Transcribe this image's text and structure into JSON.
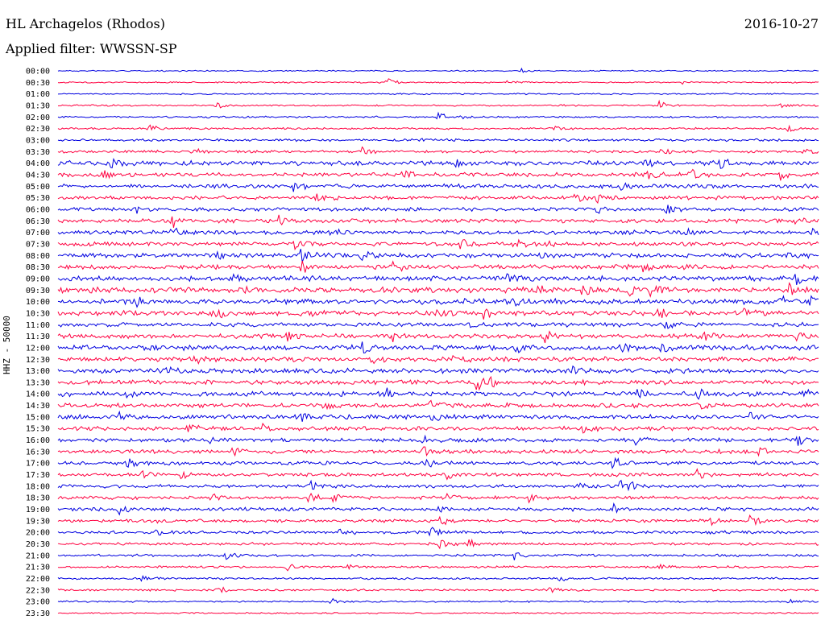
{
  "header": {
    "station": "HL Archagelos (Rhodos)",
    "date": "2016-10-27",
    "filter": "Applied filter: WWSSN-SP"
  },
  "chart_data": {
    "type": "line",
    "ylabel": "HHZ - 50000",
    "row_labels": [
      "00:00",
      "00:30",
      "01:00",
      "01:30",
      "02:00",
      "02:30",
      "03:00",
      "03:30",
      "04:00",
      "04:30",
      "05:00",
      "05:30",
      "06:00",
      "06:30",
      "07:00",
      "07:30",
      "08:00",
      "08:30",
      "09:00",
      "09:30",
      "10:00",
      "10:30",
      "11:00",
      "11:30",
      "12:00",
      "12:30",
      "13:00",
      "13:30",
      "14:00",
      "14:30",
      "15:00",
      "15:30",
      "16:00",
      "16:30",
      "17:00",
      "17:30",
      "18:00",
      "18:30",
      "19:00",
      "19:30",
      "20:00",
      "20:30",
      "21:00",
      "21:30",
      "22:00",
      "22:30",
      "23:00",
      "23:30"
    ],
    "colors": [
      "#0000e0",
      "#ff0040"
    ],
    "noise_levels": [
      0.6,
      0.7,
      0.7,
      0.8,
      0.9,
      1.0,
      1.2,
      1.3,
      2.2,
      2.0,
      2.0,
      1.8,
      1.8,
      1.9,
      2.0,
      2.0,
      2.2,
      2.2,
      2.4,
      2.6,
      2.5,
      2.4,
      2.0,
      2.2,
      2.4,
      2.2,
      2.3,
      2.2,
      2.2,
      2.2,
      2.2,
      2.0,
      1.9,
      1.9,
      1.8,
      1.7,
      1.6,
      1.6,
      1.7,
      1.5,
      1.4,
      1.3,
      1.2,
      1.1,
      1.0,
      1.0,
      0.8,
      0.7
    ],
    "events": [
      [
        [
          0.61,
          3
        ]
      ],
      [
        [
          0.43,
          9
        ],
        [
          0.59,
          2
        ],
        [
          0.82,
          2
        ]
      ],
      [],
      [
        [
          0.21,
          4
        ],
        [
          0.79,
          6
        ],
        [
          0.95,
          3
        ]
      ],
      [
        [
          0.5,
          8
        ],
        [
          0.53,
          4
        ]
      ],
      [
        [
          0.12,
          7
        ],
        [
          0.65,
          6
        ],
        [
          0.96,
          5
        ]
      ],
      [
        [
          0.47,
          4
        ]
      ],
      [
        [
          0.18,
          6
        ],
        [
          0.4,
          7
        ],
        [
          0.79,
          8
        ],
        [
          0.98,
          6
        ]
      ],
      [
        [
          0.07,
          8
        ],
        [
          0.52,
          6
        ],
        [
          0.77,
          10
        ],
        [
          0.87,
          8
        ]
      ],
      [
        [
          0.06,
          7
        ],
        [
          0.45,
          8
        ],
        [
          0.77,
          10
        ],
        [
          0.83,
          9
        ],
        [
          0.95,
          7
        ]
      ],
      [
        [
          0.31,
          8
        ],
        [
          0.74,
          6
        ]
      ],
      [
        [
          0.34,
          7
        ],
        [
          0.68,
          8
        ],
        [
          0.71,
          9
        ]
      ],
      [
        [
          0.1,
          7
        ],
        [
          0.71,
          6
        ],
        [
          0.8,
          10
        ]
      ],
      [
        [
          0.15,
          9
        ],
        [
          0.29,
          8
        ],
        [
          0.97,
          9
        ]
      ],
      [
        [
          0.15,
          6
        ],
        [
          0.36,
          5
        ],
        [
          0.82,
          7
        ],
        [
          0.99,
          9
        ]
      ],
      [
        [
          0.31,
          8
        ],
        [
          0.53,
          6
        ],
        [
          0.6,
          8
        ],
        [
          0.63,
          7
        ]
      ],
      [
        [
          0.21,
          8
        ],
        [
          0.32,
          10
        ],
        [
          0.4,
          7
        ],
        [
          0.63,
          6
        ],
        [
          0.96,
          8
        ]
      ],
      [
        [
          0.32,
          10
        ],
        [
          0.44,
          7
        ],
        [
          0.77,
          9
        ]
      ],
      [
        [
          0.23,
          6
        ],
        [
          0.59,
          6
        ],
        [
          0.97,
          8
        ]
      ],
      [
        [
          0.24,
          8
        ],
        [
          0.63,
          9
        ],
        [
          0.69,
          10
        ],
        [
          0.75,
          9
        ],
        [
          0.78,
          10
        ],
        [
          0.96,
          9
        ]
      ],
      [
        [
          0.1,
          7
        ],
        [
          0.53,
          9
        ],
        [
          0.6,
          7
        ],
        [
          0.95,
          8
        ],
        [
          0.99,
          9
        ]
      ],
      [
        [
          0.21,
          9
        ],
        [
          0.32,
          7
        ],
        [
          0.5,
          8
        ],
        [
          0.56,
          9
        ],
        [
          0.79,
          10
        ],
        [
          0.9,
          8
        ]
      ],
      [
        [
          0.54,
          6
        ],
        [
          0.8,
          7
        ]
      ],
      [
        [
          0.3,
          7
        ],
        [
          0.44,
          7
        ],
        [
          0.64,
          10
        ],
        [
          0.85,
          8
        ],
        [
          0.97,
          7
        ]
      ],
      [
        [
          0.4,
          8
        ],
        [
          0.6,
          7
        ],
        [
          0.74,
          8
        ],
        [
          0.79,
          9
        ]
      ],
      [
        [
          0.18,
          7
        ],
        [
          0.41,
          8
        ],
        [
          0.52,
          6
        ]
      ],
      [
        [
          0.14,
          6
        ],
        [
          0.34,
          7
        ],
        [
          0.67,
          8
        ]
      ],
      [
        [
          0.55,
          12
        ],
        [
          0.57,
          8
        ]
      ],
      [
        [
          0.09,
          7
        ],
        [
          0.43,
          9
        ],
        [
          0.76,
          8
        ],
        [
          0.84,
          7
        ],
        [
          0.98,
          8
        ]
      ],
      [
        [
          0.35,
          8
        ],
        [
          0.49,
          7
        ],
        [
          0.84,
          8
        ]
      ],
      [
        [
          0.08,
          9
        ],
        [
          0.32,
          8
        ],
        [
          0.49,
          6
        ],
        [
          0.91,
          7
        ]
      ],
      [
        [
          0.17,
          7
        ],
        [
          0.27,
          8
        ],
        [
          0.69,
          9
        ]
      ],
      [
        [
          0.2,
          6
        ],
        [
          0.48,
          7
        ],
        [
          0.76,
          7
        ],
        [
          0.97,
          9
        ]
      ],
      [
        [
          0.23,
          7
        ],
        [
          0.48,
          7
        ],
        [
          0.92,
          8
        ]
      ],
      [
        [
          0.09,
          9
        ],
        [
          0.48,
          10
        ],
        [
          0.73,
          8
        ]
      ],
      [
        [
          0.11,
          6
        ],
        [
          0.16,
          7
        ],
        [
          0.51,
          8
        ],
        [
          0.84,
          7
        ]
      ],
      [
        [
          0.33,
          8
        ],
        [
          0.68,
          8
        ],
        [
          0.74,
          9
        ],
        [
          0.75,
          8
        ]
      ],
      [
        [
          0.2,
          7
        ],
        [
          0.33,
          7
        ],
        [
          0.36,
          9
        ],
        [
          0.51,
          8
        ],
        [
          0.62,
          7
        ]
      ],
      [
        [
          0.08,
          9
        ],
        [
          0.5,
          8
        ],
        [
          0.73,
          8
        ]
      ],
      [
        [
          0.13,
          6
        ],
        [
          0.5,
          11
        ],
        [
          0.86,
          8
        ],
        [
          0.91,
          8
        ]
      ],
      [
        [
          0.13,
          6
        ],
        [
          0.37,
          6
        ],
        [
          0.49,
          9
        ]
      ],
      [
        [
          0.5,
          8
        ],
        [
          0.54,
          6
        ]
      ],
      [
        [
          0.22,
          5
        ],
        [
          0.6,
          7
        ]
      ],
      [
        [
          0.3,
          6
        ],
        [
          0.38,
          4
        ],
        [
          0.79,
          4
        ]
      ],
      [
        [
          0.11,
          4
        ],
        [
          0.66,
          4
        ]
      ],
      [
        [
          0.21,
          5
        ],
        [
          0.64,
          7
        ]
      ],
      [
        [
          0.36,
          5
        ],
        [
          0.96,
          4
        ]
      ],
      []
    ]
  }
}
